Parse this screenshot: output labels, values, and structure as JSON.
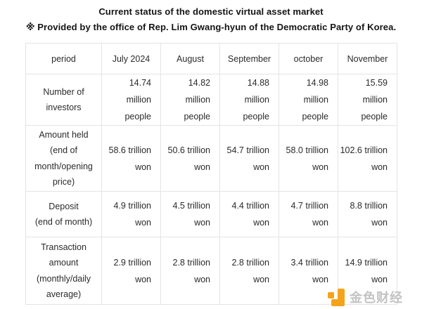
{
  "header": {
    "title": "Current status of the domestic virtual asset market",
    "subtitle": "※ Provided by the office of Rep. Lim Gwang-hyun of the Democratic Party of Korea."
  },
  "table": {
    "columns": [
      "period",
      "July 2024",
      "August",
      "September",
      "october",
      "November"
    ],
    "rows": [
      {
        "label": "Number of\ninvestors",
        "values": [
          "14.74 million\npeople",
          "14.82 million\npeople",
          "14.88 million\npeople",
          "14.98 million\npeople",
          "15.59 million\npeople"
        ]
      },
      {
        "label": "Amount held\n(end of\nmonth/opening\nprice)",
        "values": [
          "58.6 trillion\nwon",
          "50.6 trillion\nwon",
          "54.7 trillion\nwon",
          "58.0 trillion\nwon",
          "102.6 trillion\nwon"
        ]
      },
      {
        "label": "Deposit\n(end of month)",
        "values": [
          "4.9 trillion\nwon",
          "4.5 trillion\nwon",
          "4.4 trillion\nwon",
          "4.7 trillion\nwon",
          "8.8 trillion\nwon"
        ]
      },
      {
        "label": "Transaction\namount\n(monthly/daily\naverage)",
        "values": [
          "2.9 trillion\nwon",
          "2.8 trillion\nwon",
          "2.8 trillion\nwon",
          "3.4 trillion\nwon",
          "14.9 trillion\nwon"
        ]
      }
    ]
  },
  "chart_data": {
    "type": "table",
    "title": "Current status of the domestic virtual asset market",
    "source_note": "※ Provided by the office of Rep. Lim Gwang-hyun of the Democratic Party of Korea.",
    "columns": [
      "period",
      "July 2024",
      "August",
      "September",
      "october",
      "November"
    ],
    "rows": [
      {
        "metric": "Number of investors",
        "unit": "million people",
        "values": [
          14.74,
          14.82,
          14.88,
          14.98,
          15.59
        ]
      },
      {
        "metric": "Amount held (end of month/opening price)",
        "unit": "trillion won",
        "values": [
          58.6,
          50.6,
          54.7,
          58.0,
          102.6
        ]
      },
      {
        "metric": "Deposit (end of month)",
        "unit": "trillion won",
        "values": [
          4.9,
          4.5,
          4.4,
          4.7,
          8.8
        ]
      },
      {
        "metric": "Transaction amount (monthly/daily average)",
        "unit": "trillion won",
        "values": [
          2.9,
          2.8,
          2.8,
          3.4,
          14.9
        ]
      }
    ]
  },
  "watermark": {
    "text": "金色财经",
    "logo_color": "#f5a31b",
    "text_color": "#c3c3c3"
  },
  "colors": {
    "background": "#ffffff",
    "table_border": "#e4e4e4",
    "text": "#2b2b2b"
  }
}
